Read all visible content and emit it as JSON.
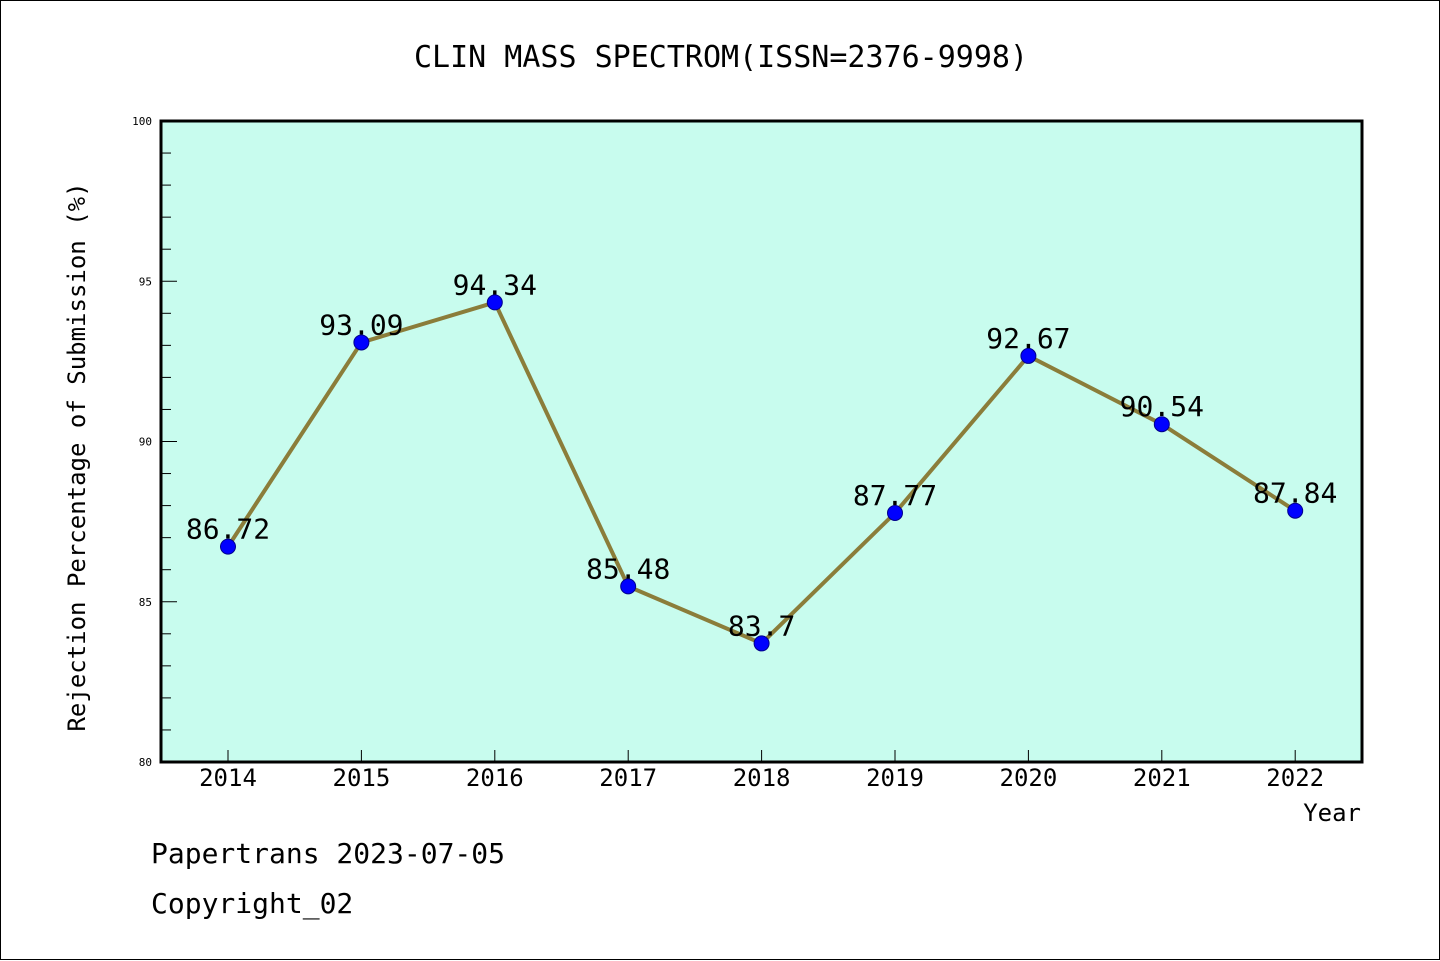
{
  "chart_data": {
    "type": "line",
    "title": "CLIN MASS SPECTROM(ISSN=2376-9998)",
    "xlabel": "Year",
    "ylabel": "Rejection Percentage of Submission (%)",
    "categories": [
      "2014",
      "2015",
      "2016",
      "2017",
      "2018",
      "2019",
      "2020",
      "2021",
      "2022"
    ],
    "series": [
      {
        "values": [
          86.72,
          93.09,
          94.34,
          85.48,
          83.7,
          87.77,
          92.67,
          90.54,
          87.84
        ],
        "data_labels": [
          "86.72",
          "93.09",
          "94.34",
          "85.48",
          "83.7",
          "87.77",
          "92.67",
          "90.54",
          "87.84"
        ]
      }
    ],
    "ylim": [
      80,
      100
    ],
    "yticks": [
      "80",
      "85",
      "90",
      "95",
      "100"
    ],
    "grid": false,
    "colors": {
      "plot_background": "#c8fcee",
      "line": "#8b7d3a",
      "marker": "#0000ff"
    }
  },
  "footer": {
    "line1": "Papertrans 2023-07-05",
    "line2": "Copyright_02"
  }
}
